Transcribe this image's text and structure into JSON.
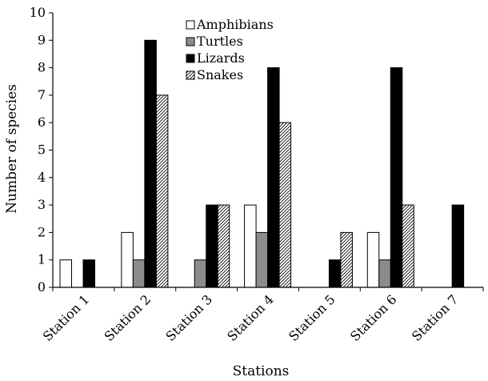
{
  "chart_data": {
    "type": "bar",
    "xlabel": "Stations",
    "ylabel": "Number of species",
    "ylim": [
      0,
      10
    ],
    "yticks": [
      0,
      1,
      2,
      3,
      4,
      5,
      6,
      7,
      8,
      9,
      10
    ],
    "grid": false,
    "legend_position": "top-center",
    "categories": [
      "Station 1",
      "Station 2",
      "Station 3",
      "Station 4",
      "Station 5",
      "Station 6",
      "Station 7"
    ],
    "series": [
      {
        "name": "Amphibians",
        "fill": "white",
        "values": [
          1,
          2,
          0,
          3,
          0,
          2,
          0
        ]
      },
      {
        "name": "Turtles",
        "fill": "gray",
        "values": [
          0,
          1,
          1,
          2,
          0,
          1,
          0
        ]
      },
      {
        "name": "Lizards",
        "fill": "black",
        "values": [
          1,
          9,
          3,
          8,
          1,
          8,
          3
        ]
      },
      {
        "name": "Snakes",
        "fill": "hatched",
        "values": [
          0,
          7,
          3,
          6,
          2,
          3,
          0
        ]
      }
    ]
  }
}
